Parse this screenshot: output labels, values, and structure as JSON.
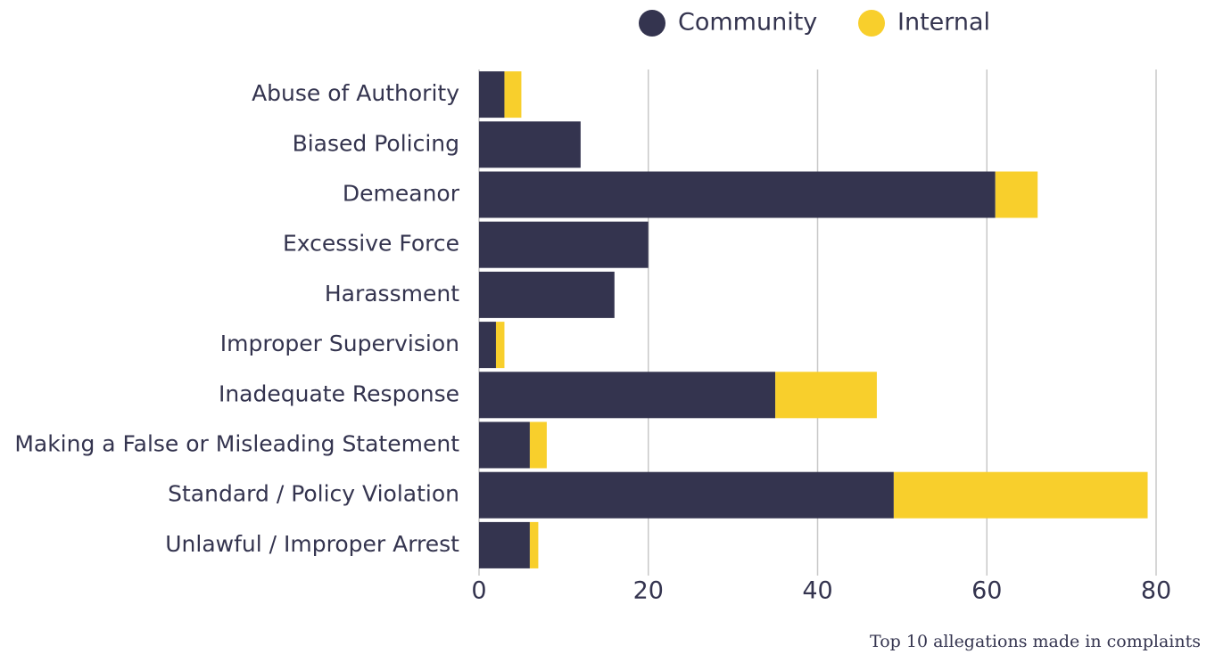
{
  "chart_data": {
    "type": "stacked-barh",
    "caption": "Top 10 allegations made in complaints",
    "categories": [
      "Abuse of Authority",
      "Biased Policing",
      "Demeanor",
      "Excessive Force",
      "Harassment",
      "Improper Supervision",
      "Inadequate Response",
      "Making a False or Misleading Statement",
      "Standard / Policy Violation",
      "Unlawful / Improper Arrest"
    ],
    "series": [
      {
        "name": "Community",
        "color": "#34344f",
        "values": [
          3,
          12,
          61,
          20,
          16,
          2,
          35,
          6,
          49,
          6
        ]
      },
      {
        "name": "Internal",
        "color": "#f8cf2c",
        "values": [
          2,
          0,
          5,
          0,
          0,
          1,
          12,
          2,
          30,
          1
        ]
      }
    ],
    "xlim": [
      0,
      80
    ],
    "xticks": [
      0,
      20,
      40,
      60,
      80
    ],
    "grid": true,
    "legend": "top"
  }
}
